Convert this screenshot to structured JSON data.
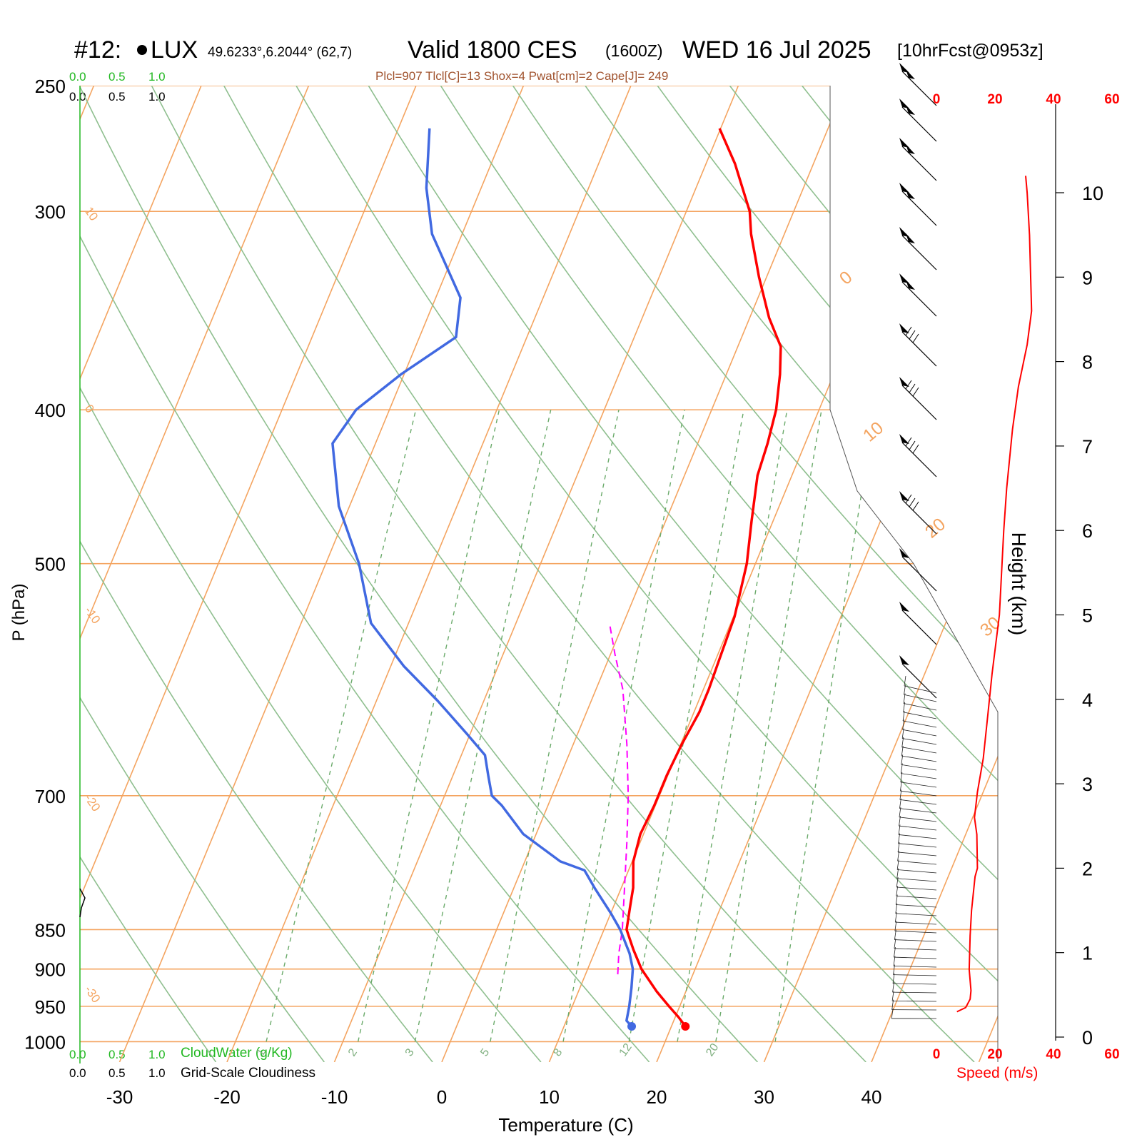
{
  "header": {
    "station": "#12:",
    "station_code": "LUX",
    "coords": "49.6233°,6.2044° (62,7)",
    "valid": "Valid 1800 CES",
    "utc": "(1600Z)",
    "date": "WED 16 Jul 2025",
    "forecast": "[10hrFcst@0953z]",
    "indices": "Plcl=907 Tlcl[C]=13 Shox=4 Pwat[cm]=2 Cape[J]= 249"
  },
  "scale_labels": {
    "cloudwater_ticks": [
      "0.0",
      "0.5",
      "1.0"
    ],
    "cloudiness_ticks": [
      "0.0",
      "0.5",
      "1.0"
    ],
    "cloudwater_label": "CloudWater (g/Kg)",
    "cloudiness_label": "Grid-Scale Cloudiness"
  },
  "colors": {
    "isotherm": "#f4a460",
    "dry_adiabat": "#8fbf8f",
    "mixing_ratio": "#6aaa6a",
    "temperature": "#ff0000",
    "dewpoint": "#4169e1",
    "parcel": "#ff00ff",
    "wind_speed": "#ff0000",
    "cloudwater_text": "#22b822",
    "indices_text": "#a0522d"
  },
  "chart_data": [
    {
      "type": "line",
      "name": "skew-t",
      "xlabel": "Temperature (C)",
      "ylabel": "P (hPa)",
      "x_ticks": [
        -30,
        -20,
        -10,
        0,
        10,
        20,
        30,
        40
      ],
      "pressure_ticks": [
        250,
        300,
        400,
        500,
        700,
        850,
        900,
        950,
        1000
      ],
      "pressure_range_hpa": [
        250,
        1030
      ],
      "isotherm_labels": [
        10,
        0,
        -10,
        -20,
        -30
      ],
      "isotherm_labels_right": [
        0,
        10,
        20,
        30
      ],
      "mixing_ratio_labels": [
        1,
        2,
        3,
        5,
        8,
        12,
        20
      ],
      "series": [
        {
          "points_p_t": [
            [
              978,
              21.3
            ],
            [
              965,
              20.3
            ],
            [
              950,
              19.0
            ],
            [
              930,
              17.3
            ],
            [
              900,
              15.0
            ],
            [
              875,
              13.5
            ],
            [
              850,
              12.1
            ],
            [
              820,
              11.5
            ],
            [
              800,
              11.1
            ],
            [
              770,
              10.1
            ],
            [
              740,
              9.7
            ],
            [
              710,
              9.9
            ],
            [
              700,
              9.9
            ],
            [
              680,
              9.9
            ],
            [
              650,
              10.1
            ],
            [
              620,
              10.5
            ],
            [
              600,
              10.5
            ],
            [
              570,
              10.3
            ],
            [
              540,
              10.1
            ],
            [
              500,
              9.2
            ],
            [
              470,
              8.0
            ],
            [
              440,
              6.8
            ],
            [
              420,
              6.5
            ],
            [
              400,
              6.0
            ],
            [
              380,
              5.0
            ],
            [
              365,
              4.0
            ],
            [
              350,
              1.8
            ],
            [
              330,
              -0.7
            ],
            [
              310,
              -3.1
            ],
            [
              300,
              -4.1
            ],
            [
              280,
              -7.3
            ],
            [
              266,
              -10.1
            ]
          ]
        },
        {
          "points_p_t": [
            [
              978,
              16.3
            ],
            [
              970,
              15.6
            ],
            [
              950,
              15.3
            ],
            [
              925,
              14.8
            ],
            [
              900,
              14.2
            ],
            [
              880,
              13.3
            ],
            [
              850,
              11.5
            ],
            [
              830,
              10.0
            ],
            [
              800,
              7.5
            ],
            [
              780,
              5.9
            ],
            [
              770,
              3.3
            ],
            [
              740,
              -1.2
            ],
            [
              710,
              -4.3
            ],
            [
              700,
              -5.6
            ],
            [
              680,
              -6.7
            ],
            [
              660,
              -7.8
            ],
            [
              640,
              -10.3
            ],
            [
              610,
              -14.3
            ],
            [
              580,
              -18.8
            ],
            [
              545,
              -23.5
            ],
            [
              500,
              -26.9
            ],
            [
              460,
              -31.0
            ],
            [
              420,
              -34.0
            ],
            [
              400,
              -33.1
            ],
            [
              380,
              -30.3
            ],
            [
              360,
              -26.6
            ],
            [
              340,
              -27.7
            ],
            [
              310,
              -32.8
            ],
            [
              290,
              -35.1
            ],
            [
              266,
              -37.1
            ]
          ]
        },
        {
          "points_p_t": [
            [
              907,
              13.0
            ],
            [
              880,
              12.3
            ],
            [
              850,
              11.7
            ],
            [
              800,
              10.3
            ],
            [
              750,
              8.8
            ],
            [
              700,
              7.1
            ],
            [
              650,
              5.0
            ],
            [
              600,
              2.5
            ],
            [
              570,
              0.4
            ],
            [
              545,
              -1.3
            ]
          ]
        }
      ]
    },
    {
      "type": "line",
      "name": "wind-speed-profile",
      "xlabel": "Speed (m/s)",
      "ylabel": "Height (km)",
      "x_ticks": [
        0,
        20,
        40,
        60
      ],
      "height_ticks_km": [
        0,
        1,
        2,
        3,
        4,
        5,
        6,
        7,
        8,
        9,
        10
      ],
      "x_range": [
        0,
        60
      ],
      "points_h_speed": [
        [
          0.3,
          7.0
        ],
        [
          0.35,
          10.0
        ],
        [
          0.45,
          11.5
        ],
        [
          0.55,
          11.8
        ],
        [
          0.8,
          11.2
        ],
        [
          1.2,
          11.5
        ],
        [
          1.5,
          12.0
        ],
        [
          1.9,
          13.2
        ],
        [
          2.0,
          14.0
        ],
        [
          2.4,
          13.8
        ],
        [
          2.6,
          13.0
        ],
        [
          2.9,
          14.0
        ],
        [
          3.3,
          16.0
        ],
        [
          3.8,
          17.5
        ],
        [
          4.3,
          19.0
        ],
        [
          5.0,
          21.5
        ],
        [
          6.0,
          23.0
        ],
        [
          6.5,
          24.0
        ],
        [
          7.2,
          26.0
        ],
        [
          7.7,
          28.0
        ],
        [
          8.2,
          31.0
        ],
        [
          8.6,
          32.5
        ],
        [
          9.5,
          31.8
        ],
        [
          10.0,
          31.0
        ],
        [
          10.2,
          30.5
        ]
      ]
    }
  ]
}
